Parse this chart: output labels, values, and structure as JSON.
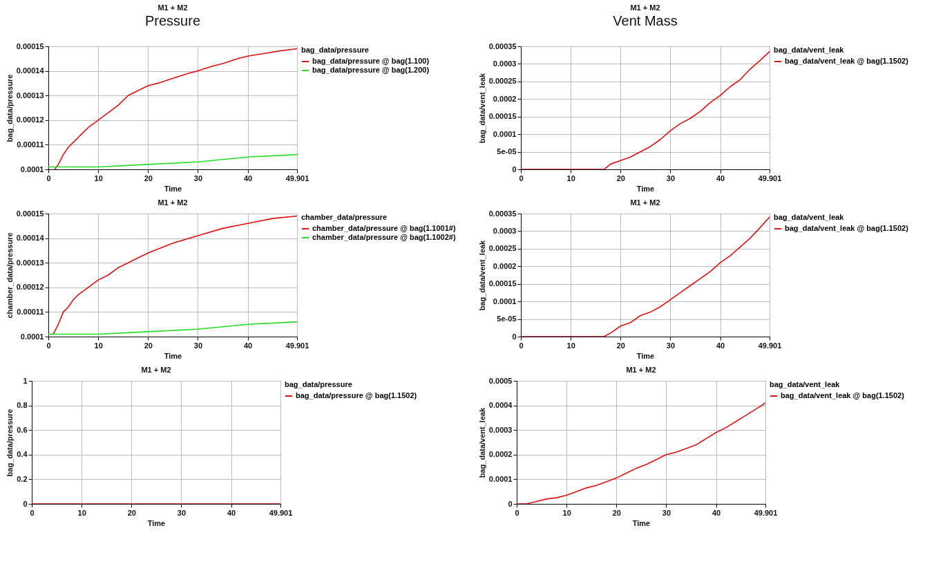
{
  "chart_data": [
    {
      "type": "line",
      "title": "M1 + M2",
      "annotations": [
        "Pressure"
      ],
      "xlabel": "Time",
      "ylabel": "bag_data/pressure",
      "legend_title": "bag_data/pressure",
      "legend": "top right",
      "grid": true,
      "xlim": [
        0,
        49.901
      ],
      "xticks": [
        0,
        10,
        20,
        30,
        40,
        49.901
      ],
      "ylim": [
        0.0001,
        0.00015
      ],
      "yticks": [
        0.0001,
        0.00011,
        0.00012,
        0.00013,
        0.00014,
        0.00015
      ],
      "series": [
        {
          "name": "bag_data/pressure @ bag(1.100)",
          "color": "#e01010",
          "x": [
            1.3,
            2,
            3,
            4,
            5,
            6,
            7,
            8,
            10,
            12,
            14,
            16,
            18,
            20,
            22,
            25,
            28,
            30,
            33,
            35,
            38,
            40,
            43,
            46,
            49.901
          ],
          "values": [
            0.0001,
            0.000102,
            0.000106,
            0.000109,
            0.000111,
            0.000113,
            0.000115,
            0.000117,
            0.00012,
            0.000123,
            0.000126,
            0.00013,
            0.000132,
            0.000134,
            0.000135,
            0.000137,
            0.000139,
            0.00014,
            0.000142,
            0.000143,
            0.000145,
            0.000146,
            0.000147,
            0.000148,
            0.000149
          ]
        },
        {
          "name": "bag_data/pressure @ bag(1.200)",
          "color": "#22dd22",
          "x": [
            0,
            10,
            20,
            30,
            40,
            49.901
          ],
          "values": [
            0.000101,
            0.000101,
            0.000102,
            0.000103,
            0.000105,
            0.000106
          ]
        }
      ]
    },
    {
      "type": "line",
      "title": "M1 + M2",
      "annotations": [
        "Vent Mass"
      ],
      "xlabel": "Time",
      "ylabel": "bag_data/vent_leak",
      "legend_title": "bag_data/vent_leak",
      "legend": "top right",
      "grid": true,
      "xlim": [
        0,
        49.901
      ],
      "xticks": [
        0,
        10,
        20,
        30,
        40,
        49.901
      ],
      "ylim": [
        0,
        0.00035
      ],
      "yticks": [
        0,
        {
          "value": 5e-05,
          "label": "5e-05"
        },
        0.0001,
        0.00015,
        0.0002,
        0.00025,
        0.0003,
        0.00035
      ],
      "series": [
        {
          "name": "bag_data/vent_leak @ bag(1.1502)",
          "color": "#e01010",
          "x": [
            0,
            16.7,
            18,
            20,
            22,
            24,
            26,
            28,
            30,
            32,
            34,
            36,
            38,
            40,
            42,
            44,
            46,
            48,
            49.901
          ],
          "values": [
            0,
            0,
            1.5e-05,
            2.5e-05,
            3.5e-05,
            5e-05,
            6.5e-05,
            8.5e-05,
            0.00011,
            0.00013,
            0.000145,
            0.000165,
            0.00019,
            0.00021,
            0.000235,
            0.000255,
            0.000285,
            0.00031,
            0.000335
          ]
        }
      ]
    },
    {
      "type": "line",
      "title": "M1 + M2",
      "xlabel": "Time",
      "ylabel": "chamber_data/pressure",
      "legend_title": "chamber_data/pressure",
      "legend": "top right",
      "grid": true,
      "xlim": [
        0,
        49.901
      ],
      "xticks": [
        0,
        10,
        20,
        30,
        40,
        49.901
      ],
      "ylim": [
        0.0001,
        0.00015
      ],
      "yticks": [
        0.0001,
        0.00011,
        0.00012,
        0.00013,
        0.00014,
        0.00015
      ],
      "series": [
        {
          "name": "chamber_data/pressure @ bag(1.1001#)",
          "color": "#e01010",
          "x": [
            0.7,
            1,
            2,
            3,
            4,
            5,
            6,
            8,
            10,
            12,
            14,
            16,
            18,
            20,
            25,
            30,
            35,
            40,
            45,
            49.901
          ],
          "values": [
            0.000101,
            0.000101,
            0.000105,
            0.00011,
            0.000112,
            0.000115,
            0.000117,
            0.00012,
            0.000123,
            0.000125,
            0.000128,
            0.00013,
            0.000132,
            0.000134,
            0.000138,
            0.000141,
            0.000144,
            0.000146,
            0.000148,
            0.000149
          ]
        },
        {
          "name": "chamber_data/pressure @ bag(1.1002#)",
          "color": "#22dd22",
          "x": [
            0,
            10,
            20,
            30,
            40,
            49.901
          ],
          "values": [
            0.000101,
            0.000101,
            0.000102,
            0.000103,
            0.000105,
            0.000106
          ]
        }
      ]
    },
    {
      "type": "line",
      "title": "M1 + M2",
      "xlabel": "Time",
      "ylabel": "bag_data/vent_leak",
      "legend_title": "bag_data/vent_leak",
      "legend": "top right",
      "grid": true,
      "xlim": [
        0,
        49.901
      ],
      "xticks": [
        0,
        10,
        20,
        30,
        40,
        49.901
      ],
      "ylim": [
        0,
        0.00035
      ],
      "yticks": [
        0,
        {
          "value": 5e-05,
          "label": "5e-05"
        },
        0.0001,
        0.00015,
        0.0002,
        0.00025,
        0.0003,
        0.00035
      ],
      "series": [
        {
          "name": "bag_data/vent_leak @ bag(1.1502)",
          "color": "#e01010",
          "x": [
            0,
            16.7,
            18,
            20,
            22,
            24,
            26,
            28,
            30,
            32,
            34,
            36,
            38,
            40,
            42,
            44,
            46,
            48,
            49.901
          ],
          "values": [
            0,
            0,
            1e-05,
            3e-05,
            4e-05,
            6e-05,
            7e-05,
            8.5e-05,
            0.000105,
            0.000125,
            0.000145,
            0.000165,
            0.000185,
            0.00021,
            0.00023,
            0.000255,
            0.00028,
            0.00031,
            0.00034
          ]
        }
      ]
    },
    {
      "type": "line",
      "title": "M1 + M2",
      "xlabel": "Time",
      "ylabel": "bag_data/pressure",
      "legend_title": "bag_data/pressure",
      "legend": "top right",
      "grid": true,
      "xlim": [
        0,
        49.901
      ],
      "xticks": [
        0,
        10,
        20,
        30,
        40,
        49.901
      ],
      "ylim": [
        0,
        1
      ],
      "yticks": [
        0,
        0.2,
        0.4,
        0.6,
        0.8,
        1
      ],
      "series": [
        {
          "name": "bag_data/pressure @ bag(1.1502)",
          "color": "#e01010",
          "x": [
            0,
            49.901
          ],
          "values": [
            0,
            0
          ]
        }
      ]
    },
    {
      "type": "line",
      "title": "M1 + M2",
      "xlabel": "Time",
      "ylabel": "bag_data/vent_leak",
      "legend_title": "bag_data/vent_leak",
      "legend": "top right",
      "grid": true,
      "xlim": [
        0,
        49.901
      ],
      "xticks": [
        0,
        10,
        20,
        30,
        40,
        49.901
      ],
      "ylim": [
        0,
        0.0005
      ],
      "yticks": [
        0,
        0.0001,
        0.0002,
        0.0003,
        0.0004,
        0.0005
      ],
      "series": [
        {
          "name": "bag_data/vent_leak @ bag(1.1502)",
          "color": "#e01010",
          "x": [
            0,
            2,
            4,
            6,
            8,
            10,
            12,
            14,
            16,
            18,
            20,
            22,
            24,
            26,
            28,
            30,
            32,
            34,
            36,
            38,
            40,
            42,
            44,
            46,
            48,
            49.901
          ],
          "values": [
            0,
            0,
            1e-05,
            2e-05,
            2.5e-05,
            3.5e-05,
            5e-05,
            6.5e-05,
            7.5e-05,
            9e-05,
            0.000105,
            0.000125,
            0.000145,
            0.00016,
            0.00018,
            0.0002,
            0.00021,
            0.000225,
            0.00024,
            0.000265,
            0.00029,
            0.00031,
            0.000335,
            0.00036,
            0.000385,
            0.00041
          ]
        }
      ]
    }
  ]
}
